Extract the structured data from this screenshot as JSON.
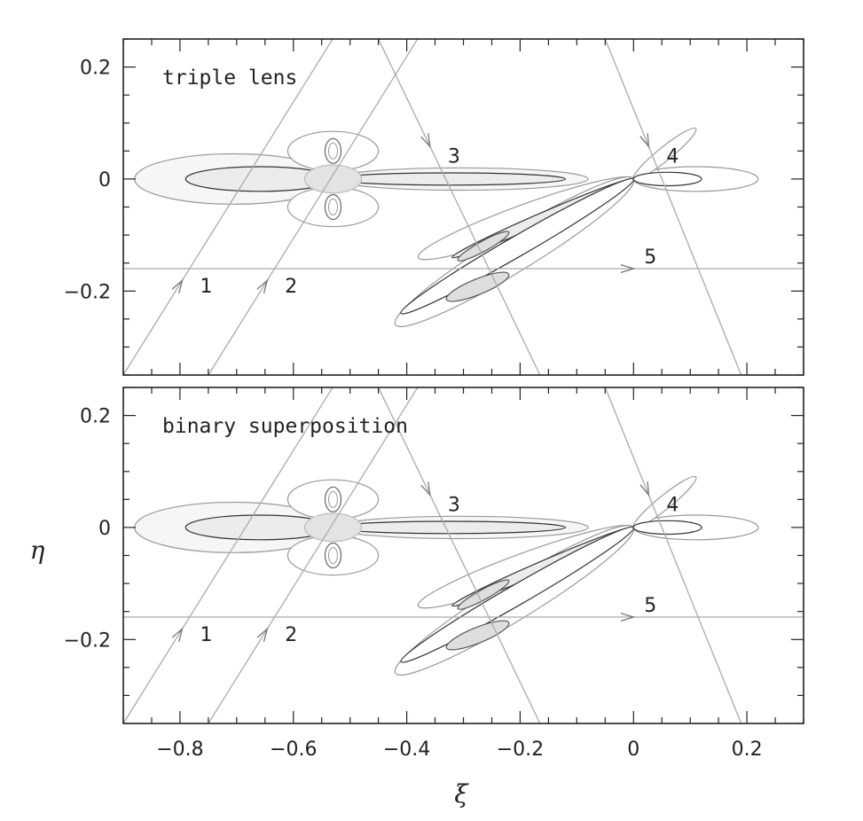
{
  "chart_data": {
    "type": "contour",
    "xlabel": "ξ",
    "ylabel": "η",
    "xlim": [
      -0.9,
      0.3
    ],
    "ylim": [
      -0.35,
      0.25
    ],
    "x_ticks": [
      -0.8,
      -0.6,
      -0.4,
      -0.2,
      0,
      0.2
    ],
    "x_tick_labels": [
      "−0.8",
      "−0.6",
      "−0.4",
      "−0.2",
      "0",
      "0.2"
    ],
    "y_ticks": [
      0.2,
      0,
      -0.2
    ],
    "y_tick_labels": [
      "0.2",
      "0",
      "−0.2"
    ],
    "panels": [
      {
        "title": "triple lens",
        "trajectories": [
          {
            "label": "1",
            "from": [
              -0.9,
              -0.35
            ],
            "to": [
              -0.5,
              0.3
            ]
          },
          {
            "label": "2",
            "from": [
              -0.75,
              -0.35
            ],
            "to": [
              -0.35,
              0.3
            ]
          },
          {
            "label": "3",
            "from": [
              -0.45,
              0.25
            ],
            "to": [
              -0.165,
              -0.35
            ]
          },
          {
            "label": "4",
            "from": [
              -0.05,
              0.25
            ],
            "to": [
              0.19,
              -0.35
            ]
          },
          {
            "label": "5",
            "from": [
              -0.9,
              -0.16
            ],
            "to": [
              0.3,
              -0.16
            ]
          }
        ]
      },
      {
        "title": "binary superposition",
        "trajectories": [
          {
            "label": "1",
            "from": [
              -0.9,
              -0.35
            ],
            "to": [
              -0.5,
              0.3
            ]
          },
          {
            "label": "2",
            "from": [
              -0.75,
              -0.35
            ],
            "to": [
              -0.35,
              0.3
            ]
          },
          {
            "label": "3",
            "from": [
              -0.45,
              0.25
            ],
            "to": [
              -0.165,
              -0.35
            ]
          },
          {
            "label": "4",
            "from": [
              -0.05,
              0.25
            ],
            "to": [
              0.19,
              -0.35
            ]
          },
          {
            "label": "5",
            "from": [
              -0.9,
              -0.16
            ],
            "to": [
              0.3,
              -0.16
            ]
          }
        ]
      }
    ],
    "caustic_center": [
      -0.53,
      0
    ],
    "grid": false
  }
}
